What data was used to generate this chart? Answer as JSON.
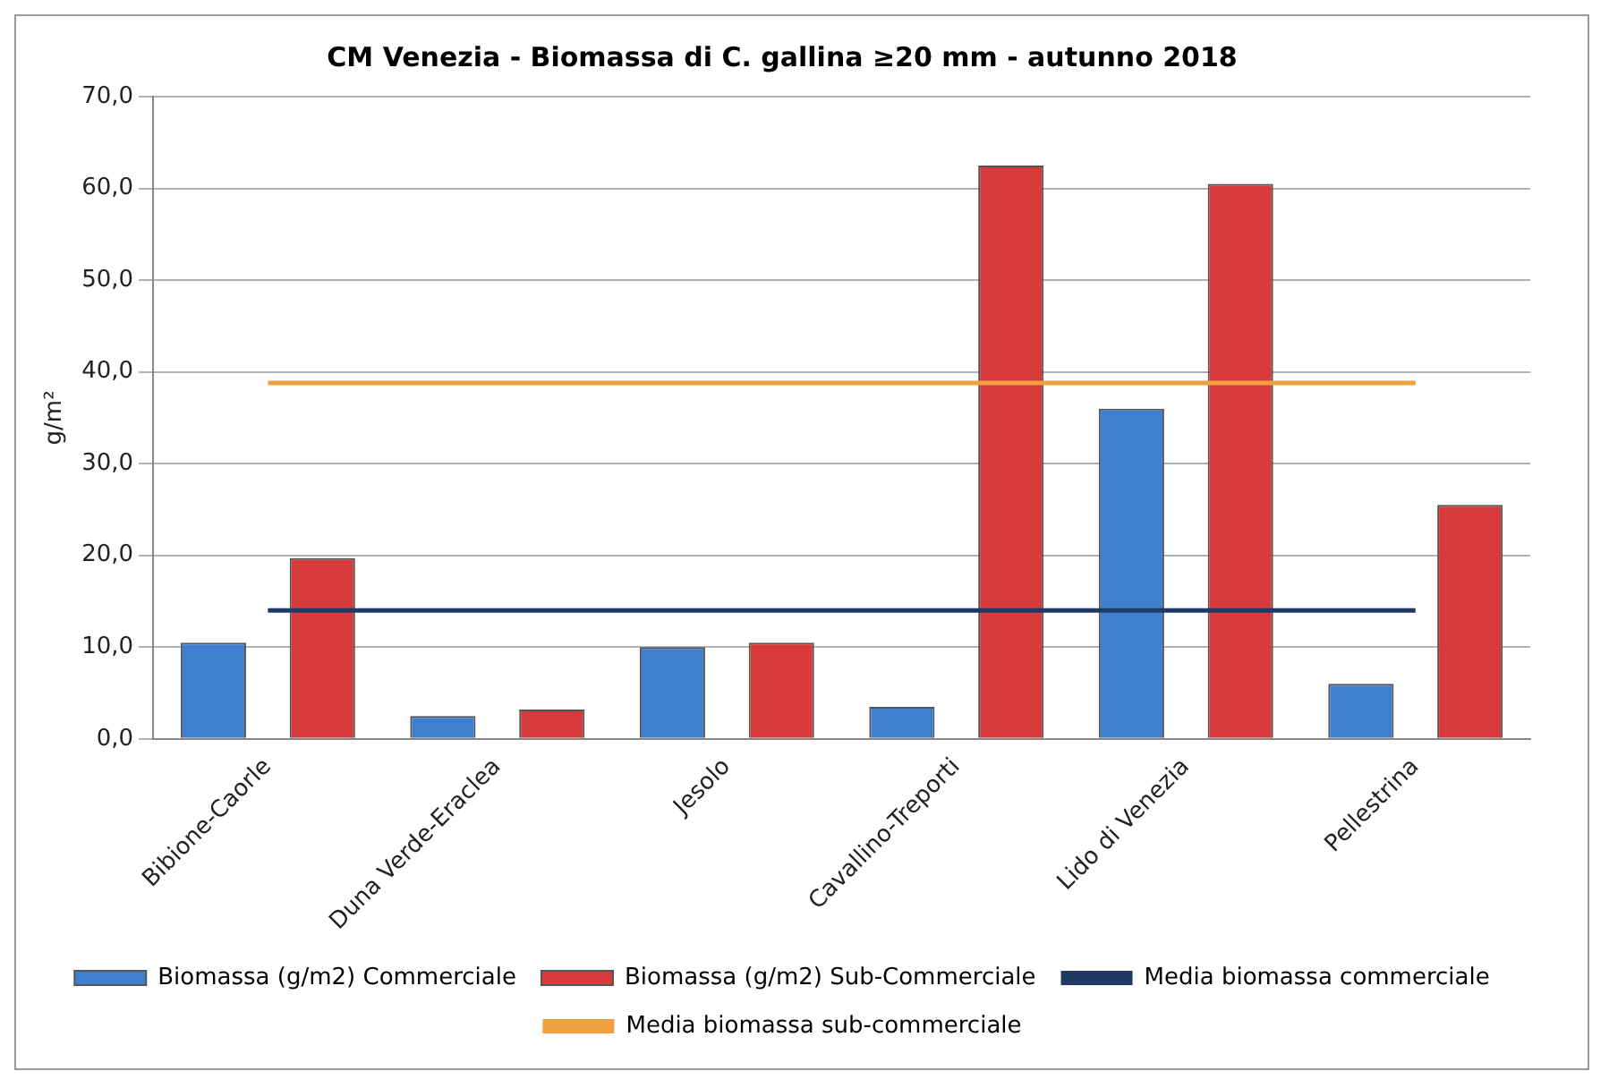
{
  "chart_data": {
    "type": "bar",
    "title": "CM Venezia - Biomassa di C. gallina ≥20 mm - autunno 2018",
    "ylabel": "g/m²",
    "categories": [
      "Bibione-Caorle",
      "Duna Verde-Eraclea",
      "Jesolo",
      "Cavallino-Treporti",
      "Lido di Venezia",
      "Pellestrina"
    ],
    "series": [
      {
        "name": "Biomassa (g/m2) Commerciale",
        "color": "#3f7fd0",
        "values": [
          10.5,
          2.5,
          10.0,
          3.5,
          36.0,
          6.0
        ]
      },
      {
        "name": "Biomassa (g/m2) Sub-Commerciale",
        "color": "#d63a3a",
        "values": [
          19.7,
          3.2,
          10.5,
          62.5,
          60.5,
          25.5
        ]
      },
      {
        "name": "Media biomassa commerciale",
        "type": "line",
        "color": "#1f3864",
        "values": [
          14.0,
          14.0,
          14.0,
          14.0,
          14.0,
          14.0
        ]
      },
      {
        "name": "Media biomassa sub-commerciale",
        "type": "line",
        "color": "#f0a040",
        "values": [
          38.8,
          38.8,
          38.8,
          38.8,
          38.8,
          38.8
        ]
      }
    ],
    "ylim": [
      0,
      70
    ],
    "yticks": [
      {
        "value": 0,
        "label": "0,0"
      },
      {
        "value": 10,
        "label": "10,0"
      },
      {
        "value": 20,
        "label": "20,0"
      },
      {
        "value": 30,
        "label": "30,0"
      },
      {
        "value": 40,
        "label": "40,0"
      },
      {
        "value": 50,
        "label": "50,0"
      },
      {
        "value": 60,
        "label": "60,0"
      },
      {
        "value": 70,
        "label": "70,0"
      }
    ],
    "grid": "y",
    "legend": "bottom"
  }
}
